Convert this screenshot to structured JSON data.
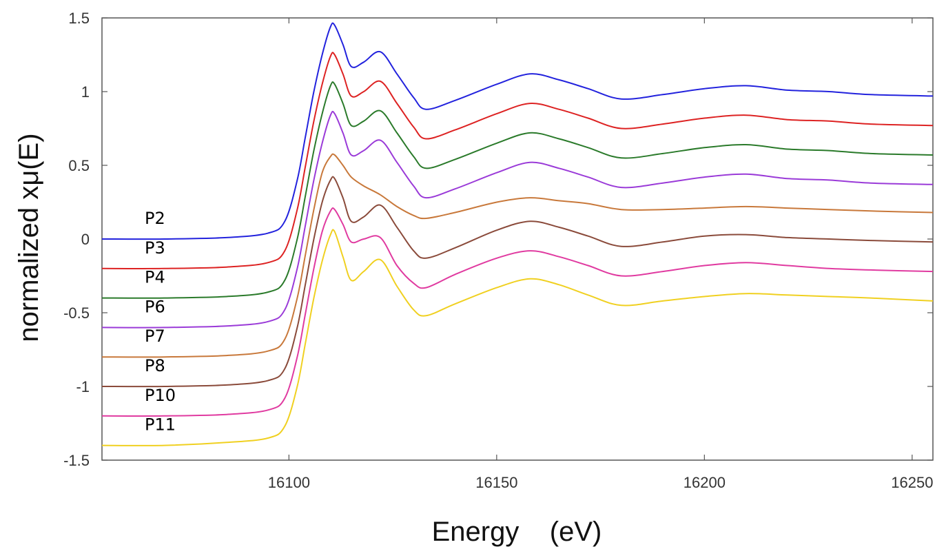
{
  "chart_data": {
    "type": "line",
    "title": "",
    "xlabel": "Energy    (eV)",
    "ylabel": "normalized xμ(E)",
    "xlim": [
      16055,
      16255
    ],
    "ylim": [
      -1.5,
      1.5
    ],
    "grid": false,
    "xticks": [
      16100,
      16150,
      16200,
      16250
    ],
    "xtick_labels": [
      "16100",
      "16150",
      "16200",
      "16250"
    ],
    "yticks": [
      1.5,
      1,
      0.5,
      0,
      -0.5,
      -1,
      -1.5
    ],
    "ytick_labels": [
      "1.5",
      "1",
      "0.5",
      "0",
      "-0.5",
      "-1",
      "-1.5"
    ],
    "x": [
      16055,
      16070,
      16085,
      16095,
      16099,
      16102,
      16104,
      16106,
      16108,
      16110,
      16111,
      16113,
      16115,
      16118,
      16122,
      16126,
      16130,
      16133,
      16140,
      16150,
      16158,
      16165,
      16172,
      16180,
      16190,
      16200,
      16210,
      16220,
      16230,
      16240,
      16255
    ],
    "series": [
      {
        "name": "P2",
        "color": "#2222dd",
        "values": [
          0,
          0,
          0.01,
          0.04,
          0.12,
          0.4,
          0.7,
          1.0,
          1.25,
          1.44,
          1.45,
          1.32,
          1.17,
          1.2,
          1.27,
          1.12,
          0.96,
          0.88,
          0.94,
          1.05,
          1.12,
          1.08,
          1.02,
          0.95,
          0.98,
          1.02,
          1.04,
          1.01,
          1.0,
          0.98,
          0.97
        ]
      },
      {
        "name": "P3",
        "color": "#dd2222",
        "values": [
          -0.2,
          -0.2,
          -0.19,
          -0.16,
          -0.08,
          0.2,
          0.5,
          0.8,
          1.05,
          1.24,
          1.25,
          1.12,
          0.97,
          1.0,
          1.07,
          0.92,
          0.76,
          0.68,
          0.74,
          0.85,
          0.92,
          0.88,
          0.82,
          0.75,
          0.78,
          0.82,
          0.84,
          0.81,
          0.8,
          0.78,
          0.77
        ]
      },
      {
        "name": "P4",
        "color": "#2a7a2a",
        "values": [
          -0.4,
          -0.4,
          -0.39,
          -0.36,
          -0.28,
          0.0,
          0.3,
          0.6,
          0.85,
          1.04,
          1.05,
          0.92,
          0.77,
          0.8,
          0.87,
          0.72,
          0.56,
          0.48,
          0.54,
          0.65,
          0.72,
          0.68,
          0.62,
          0.55,
          0.58,
          0.62,
          0.64,
          0.61,
          0.6,
          0.58,
          0.57
        ]
      },
      {
        "name": "P6",
        "color": "#9a3ad8",
        "values": [
          -0.6,
          -0.6,
          -0.59,
          -0.56,
          -0.48,
          -0.2,
          0.1,
          0.4,
          0.65,
          0.84,
          0.85,
          0.72,
          0.57,
          0.6,
          0.67,
          0.52,
          0.36,
          0.28,
          0.34,
          0.45,
          0.52,
          0.48,
          0.42,
          0.35,
          0.38,
          0.42,
          0.44,
          0.41,
          0.4,
          0.38,
          0.37
        ]
      },
      {
        "name": "P7",
        "color": "#c8783a",
        "values": [
          -0.8,
          -0.8,
          -0.79,
          -0.76,
          -0.68,
          -0.4,
          -0.1,
          0.2,
          0.45,
          0.56,
          0.57,
          0.5,
          0.42,
          0.36,
          0.3,
          0.22,
          0.16,
          0.14,
          0.18,
          0.25,
          0.28,
          0.26,
          0.24,
          0.2,
          0.2,
          0.21,
          0.22,
          0.21,
          0.2,
          0.19,
          0.18
        ]
      },
      {
        "name": "P8",
        "color": "#8a4a3a",
        "values": [
          -1.0,
          -1.0,
          -0.99,
          -0.96,
          -0.88,
          -0.6,
          -0.3,
          0.0,
          0.25,
          0.4,
          0.41,
          0.28,
          0.12,
          0.15,
          0.23,
          0.08,
          -0.08,
          -0.13,
          -0.06,
          0.06,
          0.12,
          0.08,
          0.02,
          -0.05,
          -0.02,
          0.02,
          0.03,
          0.01,
          0.0,
          -0.01,
          -0.02
        ]
      },
      {
        "name": "P10",
        "color": "#e03aa0",
        "values": [
          -1.2,
          -1.2,
          -1.19,
          -1.16,
          -1.08,
          -0.8,
          -0.5,
          -0.2,
          0.05,
          0.19,
          0.2,
          0.1,
          -0.02,
          0.0,
          0.01,
          -0.18,
          -0.3,
          -0.33,
          -0.24,
          -0.13,
          -0.08,
          -0.12,
          -0.18,
          -0.25,
          -0.22,
          -0.18,
          -0.16,
          -0.18,
          -0.2,
          -0.21,
          -0.22
        ]
      },
      {
        "name": "P11",
        "color": "#f0d020",
        "values": [
          -1.4,
          -1.4,
          -1.38,
          -1.35,
          -1.27,
          -1.0,
          -0.7,
          -0.4,
          -0.15,
          0.03,
          0.05,
          -0.12,
          -0.28,
          -0.22,
          -0.14,
          -0.32,
          -0.48,
          -0.52,
          -0.44,
          -0.33,
          -0.27,
          -0.31,
          -0.38,
          -0.45,
          -0.42,
          -0.39,
          -0.37,
          -0.38,
          -0.39,
          -0.4,
          -0.42
        ]
      }
    ]
  }
}
